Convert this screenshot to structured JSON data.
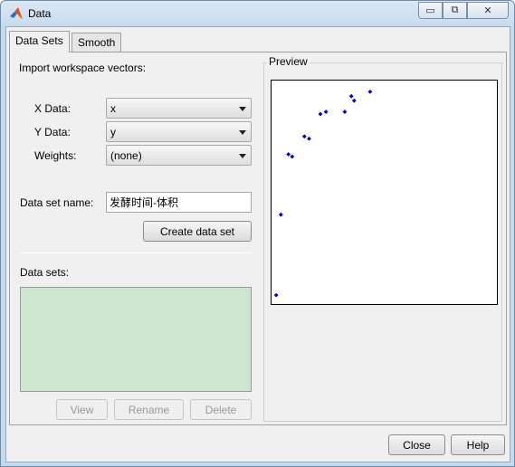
{
  "window": {
    "title": "Data",
    "minimize_glyph": "▭",
    "restore_glyph": "⧉",
    "close_glyph": "✕"
  },
  "tabs": [
    {
      "label": "Data Sets"
    },
    {
      "label": "Smooth"
    }
  ],
  "import": {
    "heading": "Import workspace vectors:",
    "x_label": "X Data:",
    "x_value": "x",
    "y_label": "Y Data:",
    "y_value": "y",
    "weights_label": "Weights:",
    "weights_value": "(none)"
  },
  "dataset_name": {
    "label": "Data set name:",
    "value": "发酵时间-体积"
  },
  "create_button": "Create data set",
  "datasets": {
    "label": "Data sets:"
  },
  "list_buttons": {
    "view": "View",
    "rename": "Rename",
    "delete": "Delete"
  },
  "preview": {
    "title": "Preview"
  },
  "chart_data": {
    "type": "scatter",
    "title": "",
    "xlabel": "",
    "ylabel": "",
    "marker_color": "#0000cc",
    "xlim": [
      0,
      24
    ],
    "ylim": [
      0,
      10
    ],
    "x": [
      0.5,
      1.0,
      1.8,
      2.2,
      3.5,
      4.0,
      5.2,
      5.8,
      7.8,
      8.5,
      8.8,
      10.5
    ],
    "y": [
      0.4,
      4.0,
      6.7,
      6.6,
      7.5,
      7.4,
      8.5,
      8.6,
      8.6,
      9.3,
      9.1,
      9.5
    ]
  },
  "footer": {
    "close": "Close",
    "help": "Help"
  }
}
